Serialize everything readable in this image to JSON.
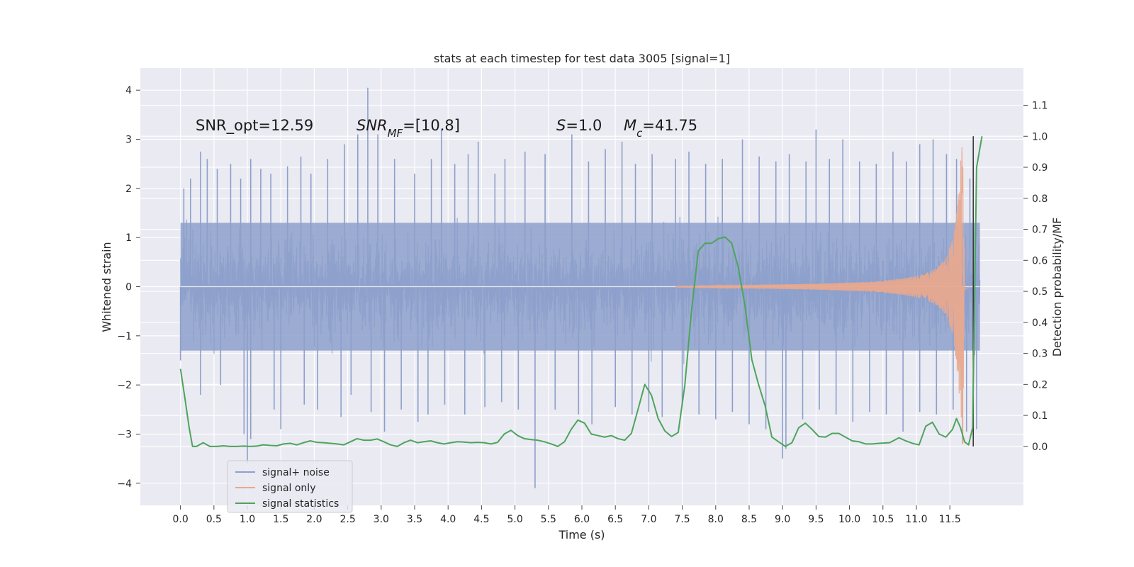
{
  "chart_data": {
    "type": "line",
    "title": "stats at each timestep for test data 3005 [signal=1]",
    "xlabel": "Time (s)",
    "ylabel_left": "Whitened strain",
    "ylabel_right": "Detection probability/MF",
    "xlim": [
      -0.6,
      12.6
    ],
    "ylim_left": [
      -4.45,
      4.45
    ],
    "ylim_right": [
      -0.19,
      1.22
    ],
    "grid": true,
    "legend_position": "lower-left",
    "xticks": [
      0.0,
      0.5,
      1.0,
      1.5,
      2.0,
      2.5,
      3.0,
      3.5,
      4.0,
      4.5,
      5.0,
      5.5,
      6.0,
      6.5,
      7.0,
      7.5,
      8.0,
      8.5,
      9.0,
      9.5,
      10.0,
      10.5,
      11.0,
      11.5
    ],
    "xtick_labels": [
      "0.0",
      "0.5",
      "1.0",
      "1.5",
      "2.0",
      "2.5",
      "3.0",
      "3.5",
      "4.0",
      "4.5",
      "5.0",
      "5.5",
      "6.0",
      "6.5",
      "7.0",
      "7.5",
      "8.0",
      "8.5",
      "9.0",
      "9.5",
      "10.0",
      "10.5",
      "11.0",
      "11.5"
    ],
    "yticks_left": [
      4,
      3,
      2,
      1,
      0,
      -1,
      -2,
      -3,
      -4
    ],
    "ytick_labels_left": [
      "4",
      "3",
      "2",
      "1",
      "0",
      "−1",
      "−2",
      "−3",
      "−4"
    ],
    "yticks_right": [
      1.1,
      1.0,
      0.9,
      0.8,
      0.7,
      0.6,
      0.5,
      0.4,
      0.3,
      0.2,
      0.1,
      0.0
    ],
    "ytick_labels_right": [
      "1.1",
      "1.0",
      "0.9",
      "0.8",
      "0.7",
      "0.6",
      "0.5",
      "0.4",
      "0.3",
      "0.2",
      "0.1",
      "0.0"
    ],
    "series": [
      {
        "name": "signal+ noise",
        "color": "#8da0cb",
        "axis": "left",
        "t_range": [
          0.0,
          11.95
        ],
        "band_approx": [
          -1.3,
          1.3
        ],
        "spikes": [
          [
            0.05,
            2.0
          ],
          [
            0.15,
            2.2
          ],
          [
            0.3,
            2.75
          ],
          [
            0.4,
            2.6
          ],
          [
            0.55,
            2.4
          ],
          [
            0.75,
            2.5
          ],
          [
            0.9,
            2.2
          ],
          [
            1.05,
            2.6
          ],
          [
            1.2,
            2.4
          ],
          [
            1.35,
            2.3
          ],
          [
            1.6,
            2.45
          ],
          [
            1.8,
            2.65
          ],
          [
            1.95,
            2.3
          ],
          [
            2.2,
            2.6
          ],
          [
            2.45,
            2.9
          ],
          [
            2.65,
            3.1
          ],
          [
            2.8,
            4.05
          ],
          [
            2.95,
            3.1
          ],
          [
            3.2,
            2.6
          ],
          [
            3.5,
            2.3
          ],
          [
            3.75,
            2.6
          ],
          [
            3.9,
            3.2
          ],
          [
            4.1,
            2.5
          ],
          [
            4.3,
            2.7
          ],
          [
            4.45,
            2.95
          ],
          [
            4.7,
            2.3
          ],
          [
            4.85,
            2.6
          ],
          [
            5.15,
            2.75
          ],
          [
            5.45,
            2.7
          ],
          [
            5.85,
            3.1
          ],
          [
            6.1,
            2.55
          ],
          [
            6.35,
            2.8
          ],
          [
            6.6,
            2.95
          ],
          [
            6.8,
            2.5
          ],
          [
            7.05,
            2.7
          ],
          [
            7.4,
            2.6
          ],
          [
            7.6,
            2.75
          ],
          [
            7.85,
            2.5
          ],
          [
            8.1,
            2.6
          ],
          [
            8.4,
            3.0
          ],
          [
            8.65,
            2.65
          ],
          [
            8.9,
            2.55
          ],
          [
            9.1,
            2.7
          ],
          [
            9.35,
            2.55
          ],
          [
            9.5,
            3.2
          ],
          [
            9.7,
            2.6
          ],
          [
            9.9,
            3.0
          ],
          [
            10.15,
            2.55
          ],
          [
            10.4,
            2.5
          ],
          [
            10.65,
            2.75
          ],
          [
            10.85,
            2.55
          ],
          [
            11.05,
            2.9
          ],
          [
            11.25,
            3.0
          ],
          [
            11.45,
            2.7
          ],
          [
            11.6,
            2.6
          ],
          [
            11.8,
            2.2
          ],
          [
            0.0,
            -1.5
          ],
          [
            0.3,
            -2.2
          ],
          [
            0.6,
            -2.0
          ],
          [
            0.95,
            -3.0
          ],
          [
            1.0,
            -3.6
          ],
          [
            1.05,
            -3.1
          ],
          [
            1.4,
            -2.5
          ],
          [
            1.5,
            -2.9
          ],
          [
            1.85,
            -2.4
          ],
          [
            2.05,
            -2.5
          ],
          [
            2.4,
            -2.65
          ],
          [
            2.55,
            -2.2
          ],
          [
            2.85,
            -2.55
          ],
          [
            3.05,
            -2.95
          ],
          [
            3.3,
            -2.5
          ],
          [
            3.55,
            -2.75
          ],
          [
            3.7,
            -2.6
          ],
          [
            3.95,
            -2.4
          ],
          [
            4.25,
            -2.6
          ],
          [
            4.55,
            -2.45
          ],
          [
            4.8,
            -2.35
          ],
          [
            5.05,
            -2.5
          ],
          [
            5.3,
            -4.1
          ],
          [
            5.6,
            -2.5
          ],
          [
            5.95,
            -2.6
          ],
          [
            6.15,
            -2.8
          ],
          [
            6.5,
            -2.45
          ],
          [
            6.75,
            -2.6
          ],
          [
            7.0,
            -2.55
          ],
          [
            7.2,
            -2.65
          ],
          [
            7.5,
            -2.4
          ],
          [
            7.75,
            -2.6
          ],
          [
            8.0,
            -2.7
          ],
          [
            8.25,
            -2.55
          ],
          [
            8.5,
            -2.8
          ],
          [
            8.75,
            -2.9
          ],
          [
            9.0,
            -3.5
          ],
          [
            9.05,
            -3.3
          ],
          [
            9.3,
            -2.7
          ],
          [
            9.55,
            -2.5
          ],
          [
            9.8,
            -2.6
          ],
          [
            10.05,
            -2.75
          ],
          [
            10.3,
            -2.55
          ],
          [
            10.55,
            -2.6
          ],
          [
            10.8,
            -2.95
          ],
          [
            11.05,
            -2.55
          ],
          [
            11.3,
            -2.6
          ],
          [
            11.55,
            -2.5
          ],
          [
            11.75,
            -2.95
          ],
          [
            11.9,
            -2.9
          ]
        ]
      },
      {
        "name": "signal only",
        "color": "#e8a98e",
        "axis": "left",
        "envelope": [
          [
            7.4,
            0.01
          ],
          [
            8.5,
            0.03
          ],
          [
            9.5,
            0.06
          ],
          [
            10.3,
            0.1
          ],
          [
            10.8,
            0.17
          ],
          [
            11.1,
            0.25
          ],
          [
            11.3,
            0.38
          ],
          [
            11.45,
            0.6
          ],
          [
            11.55,
            1.0
          ],
          [
            11.6,
            1.6
          ],
          [
            11.65,
            2.35
          ],
          [
            11.68,
            2.85
          ],
          [
            11.7,
            2.3
          ],
          [
            11.72,
            0.2
          ],
          [
            11.8,
            0.0
          ]
        ]
      },
      {
        "name": "signal statistics",
        "color": "#4da45c",
        "axis": "right",
        "points": [
          [
            0.0,
            0.25
          ],
          [
            0.07,
            0.15
          ],
          [
            0.13,
            0.06
          ],
          [
            0.18,
            0.0
          ],
          [
            0.24,
            0.0
          ],
          [
            0.34,
            0.012
          ],
          [
            0.44,
            0.0
          ],
          [
            0.54,
            0.0
          ],
          [
            0.64,
            0.002
          ],
          [
            0.74,
            0.0
          ],
          [
            0.84,
            0.0
          ],
          [
            0.94,
            0.001
          ],
          [
            1.04,
            0.0
          ],
          [
            1.14,
            0.001
          ],
          [
            1.24,
            0.005
          ],
          [
            1.34,
            0.003
          ],
          [
            1.44,
            0.002
          ],
          [
            1.54,
            0.008
          ],
          [
            1.64,
            0.01
          ],
          [
            1.74,
            0.005
          ],
          [
            1.84,
            0.012
          ],
          [
            1.94,
            0.018
          ],
          [
            2.04,
            0.013
          ],
          [
            2.14,
            0.012
          ],
          [
            2.24,
            0.01
          ],
          [
            2.34,
            0.008
          ],
          [
            2.44,
            0.005
          ],
          [
            2.54,
            0.015
          ],
          [
            2.64,
            0.025
          ],
          [
            2.74,
            0.02
          ],
          [
            2.84,
            0.02
          ],
          [
            2.94,
            0.024
          ],
          [
            3.04,
            0.015
          ],
          [
            3.14,
            0.005
          ],
          [
            3.24,
            0.0
          ],
          [
            3.34,
            0.012
          ],
          [
            3.44,
            0.02
          ],
          [
            3.54,
            0.012
          ],
          [
            3.64,
            0.015
          ],
          [
            3.74,
            0.018
          ],
          [
            3.84,
            0.012
          ],
          [
            3.94,
            0.008
          ],
          [
            4.04,
            0.012
          ],
          [
            4.14,
            0.015
          ],
          [
            4.24,
            0.014
          ],
          [
            4.34,
            0.012
          ],
          [
            4.44,
            0.013
          ],
          [
            4.54,
            0.012
          ],
          [
            4.64,
            0.008
          ],
          [
            4.74,
            0.013
          ],
          [
            4.84,
            0.04
          ],
          [
            4.94,
            0.052
          ],
          [
            5.04,
            0.035
          ],
          [
            5.14,
            0.025
          ],
          [
            5.24,
            0.022
          ],
          [
            5.34,
            0.02
          ],
          [
            5.44,
            0.015
          ],
          [
            5.54,
            0.008
          ],
          [
            5.64,
            0.0
          ],
          [
            5.74,
            0.015
          ],
          [
            5.84,
            0.055
          ],
          [
            5.94,
            0.085
          ],
          [
            6.04,
            0.075
          ],
          [
            6.14,
            0.04
          ],
          [
            6.24,
            0.035
          ],
          [
            6.34,
            0.03
          ],
          [
            6.44,
            0.035
          ],
          [
            6.54,
            0.025
          ],
          [
            6.64,
            0.02
          ],
          [
            6.74,
            0.042
          ],
          [
            6.84,
            0.12
          ],
          [
            6.94,
            0.2
          ],
          [
            7.04,
            0.165
          ],
          [
            7.14,
            0.09
          ],
          [
            7.24,
            0.05
          ],
          [
            7.34,
            0.032
          ],
          [
            7.44,
            0.045
          ],
          [
            7.54,
            0.2
          ],
          [
            7.64,
            0.44
          ],
          [
            7.74,
            0.63
          ],
          [
            7.84,
            0.655
          ],
          [
            7.94,
            0.655
          ],
          [
            8.04,
            0.67
          ],
          [
            8.14,
            0.675
          ],
          [
            8.24,
            0.655
          ],
          [
            8.34,
            0.575
          ],
          [
            8.44,
            0.45
          ],
          [
            8.54,
            0.28
          ],
          [
            8.64,
            0.2
          ],
          [
            8.74,
            0.13
          ],
          [
            8.84,
            0.03
          ],
          [
            8.94,
            0.015
          ],
          [
            9.04,
            0.0
          ],
          [
            9.14,
            0.012
          ],
          [
            9.24,
            0.06
          ],
          [
            9.34,
            0.075
          ],
          [
            9.44,
            0.055
          ],
          [
            9.54,
            0.032
          ],
          [
            9.64,
            0.03
          ],
          [
            9.74,
            0.042
          ],
          [
            9.84,
            0.042
          ],
          [
            9.94,
            0.03
          ],
          [
            10.04,
            0.018
          ],
          [
            10.14,
            0.015
          ],
          [
            10.24,
            0.008
          ],
          [
            10.34,
            0.008
          ],
          [
            10.44,
            0.01
          ]
        ]
      }
    ],
    "annotations": [
      "SNR_opt=12.59",
      "SNR_MF=[10.8]",
      "S=1.0",
      "M_c=41.75"
    ],
    "vertical_marker_x": 11.85
  }
}
